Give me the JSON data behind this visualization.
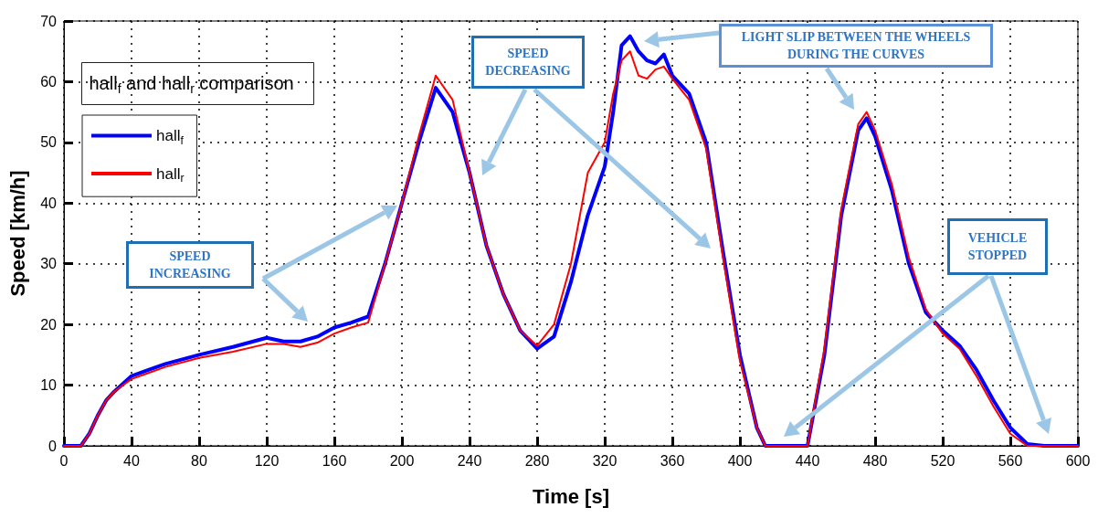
{
  "chart_data": {
    "type": "line",
    "xlabel": "Time [s]",
    "ylabel": "Speed [km/h]",
    "legend_title": "hall$_{f}$ and hall$_{r}$ comparison",
    "x": [
      0,
      10,
      15,
      20,
      25,
      30,
      40,
      50,
      60,
      80,
      100,
      120,
      130,
      140,
      150,
      160,
      170,
      180,
      190,
      200,
      210,
      220,
      230,
      240,
      250,
      260,
      270,
      280,
      290,
      300,
      310,
      320,
      325,
      330,
      335,
      340,
      345,
      350,
      355,
      360,
      370,
      380,
      390,
      400,
      410,
      415,
      440,
      450,
      460,
      470,
      475,
      480,
      490,
      500,
      510,
      520,
      530,
      540,
      550,
      560,
      570,
      580,
      600
    ],
    "series": [
      {
        "name": "hall$_{f}$",
        "color": "#0000ff",
        "values": [
          0,
          0,
          2,
          5,
          7.5,
          9,
          11.5,
          12.5,
          13.5,
          15,
          16.3,
          17.8,
          17.2,
          17.2,
          18,
          19.5,
          20.3,
          21.3,
          30,
          40,
          50,
          59,
          55,
          45,
          33,
          25,
          19,
          16,
          18,
          27,
          38,
          46,
          55,
          66,
          67.5,
          65,
          63.5,
          63,
          64.5,
          61,
          58,
          50,
          32,
          15,
          3,
          0,
          0,
          15,
          38,
          52,
          54,
          51,
          42,
          30,
          22,
          19,
          16.5,
          12.5,
          7.5,
          3,
          0.3,
          0,
          0
        ]
      },
      {
        "name": "hall$_{r}$",
        "color": "#ff0000",
        "values": [
          0,
          0,
          2,
          5,
          7.5,
          9,
          11,
          12,
          13,
          14.5,
          15.5,
          16.8,
          16.8,
          16.3,
          17,
          18.5,
          19.5,
          20.3,
          30,
          40,
          51,
          61,
          57,
          45,
          33,
          25,
          19,
          16.5,
          20,
          30,
          45,
          50,
          58,
          63.5,
          65,
          61,
          60.5,
          62,
          62.5,
          60.5,
          57,
          49,
          31,
          14,
          3,
          0,
          0,
          16,
          39,
          53,
          55,
          52,
          43,
          31,
          22.5,
          18.5,
          16,
          11.5,
          6.5,
          2,
          0,
          0,
          0
        ]
      }
    ],
    "xlim": [
      0,
      600
    ],
    "xticks": [
      0,
      40,
      80,
      120,
      160,
      200,
      240,
      280,
      320,
      360,
      400,
      440,
      480,
      520,
      560,
      600
    ],
    "ylim": [
      0,
      70
    ],
    "yticks": [
      0,
      10,
      20,
      30,
      40,
      50,
      60,
      70
    ],
    "grid": true,
    "legend": "top left",
    "marker": "none",
    "line_style": "solid",
    "annotations": [
      "SPEED INCREASING",
      "SPEED DECREASING",
      "LIGHT SLIP BETWEEN THE WHEELS DURING THE CURVES",
      "VEHICLE STOPPED"
    ]
  }
}
